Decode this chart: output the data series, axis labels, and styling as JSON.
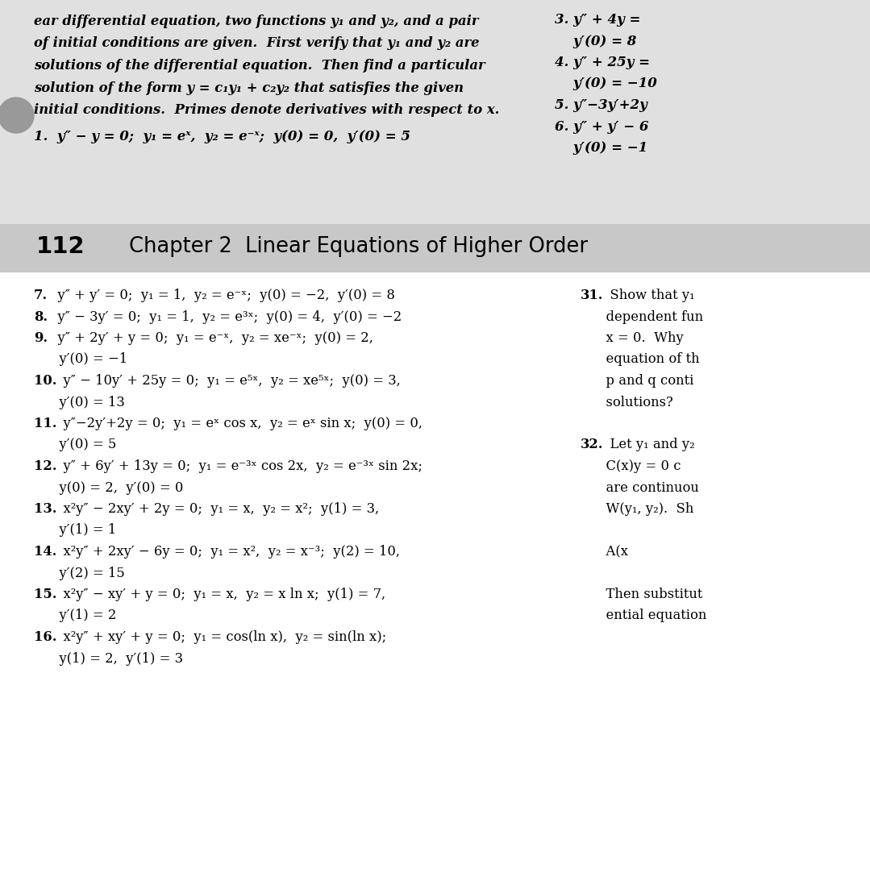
{
  "bg_color": "#ffffff",
  "top_section_bg": "#e0e0e0",
  "header_section_bg": "#c8c8c8",
  "bottom_section_bg": "#ffffff",
  "top_left_text": [
    "ear differential equation, two functions y₁ and y₂, and a pair",
    "of initial conditions are given.  First verify that y₁ and y₂ are",
    "solutions of the differential equation.  Then find a particular",
    "solution of the form y = c₁y₁ + c₂y₂ that satisfies the given",
    "initial conditions.  Primes denote derivatives with respect to x."
  ],
  "problem1": "1.  y″ − y = 0;  y₁ = eˣ,  y₂ = e⁻ˣ;  y(0) = 0,  y′(0) = 5",
  "top_right_lines": [
    [
      "3.",
      " y″ + 4y ="
    ],
    [
      "",
      "    y′(0) = 8"
    ],
    [
      "4.",
      " y″ + 25y ="
    ],
    [
      "",
      "    y′(0) = −10"
    ],
    [
      "5.",
      " y″−3y′+2y"
    ],
    [
      "6.",
      " y″ + y′ − 6"
    ],
    [
      "",
      "    y′(0) = −1"
    ]
  ],
  "page_header_num": "112",
  "page_header_title": "Chapter 2  Linear Equations of Higher Order",
  "problems_left": [
    {
      "num": "7.",
      "text": "  y″ + y′ = 0;  y₁ = 1,  y₂ = e⁻ˣ;  y(0) = −2,  y′(0) = 8",
      "cont": false
    },
    {
      "num": "8.",
      "text": "  y″ − 3y′ = 0;  y₁ = 1,  y₂ = e³ˣ;  y(0) = 4,  y′(0) = −2",
      "cont": false
    },
    {
      "num": "9.",
      "text": "  y″ + 2y′ + y = 0;  y₁ = e⁻ˣ,  y₂ = xe⁻ˣ;  y(0) = 2,",
      "cont": false
    },
    {
      "num": "",
      "text": "      y′(0) = −1",
      "cont": true
    },
    {
      "num": "10.",
      "text": "  y″ − 10y′ + 25y = 0;  y₁ = e⁵ˣ,  y₂ = xe⁵ˣ;  y(0) = 3,",
      "cont": false
    },
    {
      "num": "",
      "text": "      y′(0) = 13",
      "cont": true
    },
    {
      "num": "11.",
      "text": "  y″−2y′+2y = 0;  y₁ = eˣ cos x,  y₂ = eˣ sin x;  y(0) = 0,",
      "cont": false
    },
    {
      "num": "",
      "text": "      y′(0) = 5",
      "cont": true
    },
    {
      "num": "12.",
      "text": "  y″ + 6y′ + 13y = 0;  y₁ = e⁻³ˣ cos 2x,  y₂ = e⁻³ˣ sin 2x;",
      "cont": false
    },
    {
      "num": "",
      "text": "      y(0) = 2,  y′(0) = 0",
      "cont": true
    },
    {
      "num": "13.",
      "text": "  x²y″ − 2xy′ + 2y = 0;  y₁ = x,  y₂ = x²;  y(1) = 3,",
      "cont": false
    },
    {
      "num": "",
      "text": "      y′(1) = 1",
      "cont": true
    },
    {
      "num": "14.",
      "text": "  x²y″ + 2xy′ − 6y = 0;  y₁ = x²,  y₂ = x⁻³;  y(2) = 10,",
      "cont": false
    },
    {
      "num": "",
      "text": "      y′(2) = 15",
      "cont": true
    },
    {
      "num": "15.",
      "text": "  x²y″ − xy′ + y = 0;  y₁ = x,  y₂ = x ln x;  y(1) = 7,",
      "cont": false
    },
    {
      "num": "",
      "text": "      y′(1) = 2",
      "cont": true
    },
    {
      "num": "16.",
      "text": "  x²y″ + xy′ + y = 0;  y₁ = cos(ln x),  y₂ = sin(ln x);",
      "cont": false
    },
    {
      "num": "",
      "text": "      y(1) = 2,  y′(1) = 3",
      "cont": true
    }
  ],
  "problems_right": [
    {
      "num": "31.",
      "text": "  Show that y₁",
      "bold_num": true
    },
    {
      "num": "",
      "text": "      dependent fun",
      "bold_num": false
    },
    {
      "num": "",
      "text": "      x = 0.  Why",
      "bold_num": false
    },
    {
      "num": "",
      "text": "      equation of th",
      "bold_num": false
    },
    {
      "num": "",
      "text": "      p and q conti",
      "bold_num": false
    },
    {
      "num": "",
      "text": "      solutions?",
      "bold_num": false
    },
    {
      "num": "",
      "text": "",
      "bold_num": false
    },
    {
      "num": "32.",
      "text": "  Let y₁ and y₂",
      "bold_num": true
    },
    {
      "num": "",
      "text": "      C(x)y = 0 c",
      "bold_num": false
    },
    {
      "num": "",
      "text": "      are continuou",
      "bold_num": false
    },
    {
      "num": "",
      "text": "      W(y₁, y₂).  Sh",
      "bold_num": false
    },
    {
      "num": "",
      "text": "",
      "bold_num": false
    },
    {
      "num": "",
      "text": "      A(x",
      "bold_num": false
    },
    {
      "num": "",
      "text": "",
      "bold_num": false
    },
    {
      "num": "",
      "text": "      Then substitut",
      "bold_num": false
    },
    {
      "num": "",
      "text": "      ential equation",
      "bold_num": false
    }
  ]
}
